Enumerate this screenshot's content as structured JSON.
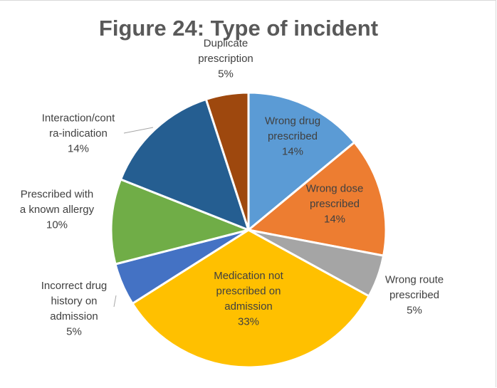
{
  "chart_data": {
    "type": "pie",
    "title": "Figure 24: Type of incident",
    "slices": [
      {
        "label_lines": [
          "Wrong drug",
          "prescribed"
        ],
        "value": 14,
        "value_label": "14%",
        "color": "#5b9bd5"
      },
      {
        "label_lines": [
          "Wrong dose",
          "prescribed"
        ],
        "value": 14,
        "value_label": "14%",
        "color": "#ed7d31"
      },
      {
        "label_lines": [
          "Wrong route",
          "prescribed"
        ],
        "value": 5,
        "value_label": "5%",
        "color": "#a5a5a5"
      },
      {
        "label_lines": [
          "Medication not",
          "prescribed on",
          "admission"
        ],
        "value": 33,
        "value_label": "33%",
        "color": "#ffc000"
      },
      {
        "label_lines": [
          "Incorrect drug",
          "history on",
          "admission"
        ],
        "value": 5,
        "value_label": "5%",
        "color": "#4472c4"
      },
      {
        "label_lines": [
          "Prescribed with",
          "a known allergy"
        ],
        "value": 10,
        "value_label": "10%",
        "color": "#70ad47"
      },
      {
        "label_lines": [
          "Interaction/cont",
          "ra-indication"
        ],
        "value": 14,
        "value_label": "14%",
        "color": "#255e91"
      },
      {
        "label_lines": [
          "Duplicate",
          "prescription"
        ],
        "value": 5,
        "value_label": "5%",
        "color": "#9e480e"
      }
    ]
  }
}
